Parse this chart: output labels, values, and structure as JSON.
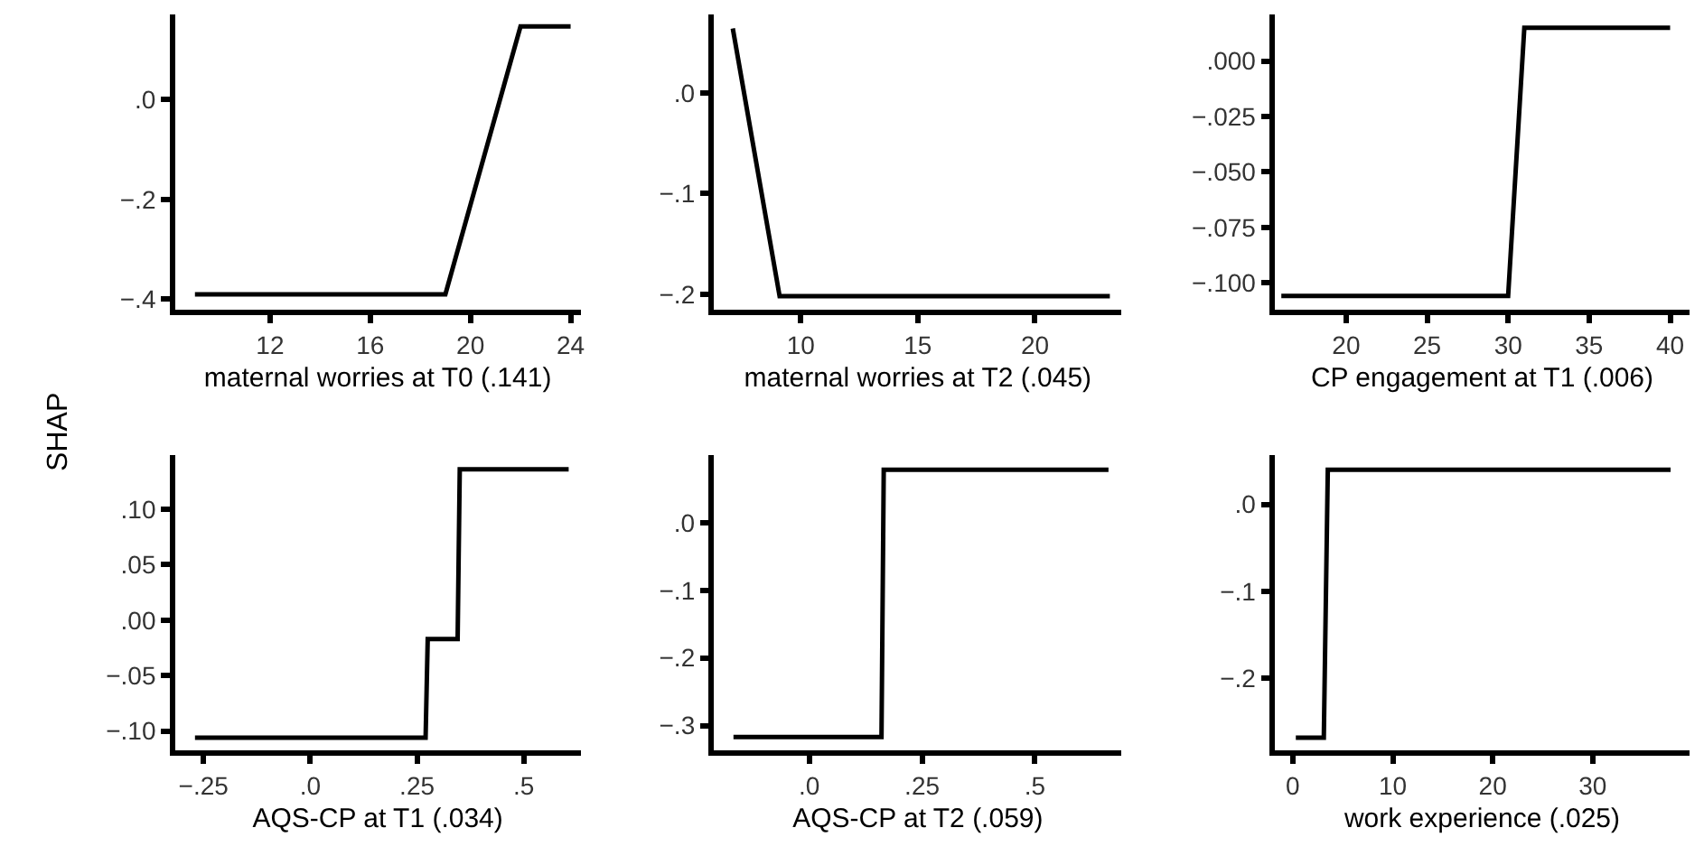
{
  "chart_data": [
    {
      "type": "line",
      "ylabel": "SHAP",
      "xlabel": "maternal worries at T0 (.141)",
      "color": "#000000",
      "x": [
        9.0,
        19.0,
        22.0,
        24.0
      ],
      "values": [
        -0.39,
        -0.39,
        0.146,
        0.146
      ],
      "xlim": [
        8.2,
        24.4
      ],
      "ylim": [
        -0.42,
        0.17
      ],
      "xticks": [
        12,
        16,
        20,
        24
      ],
      "yticks": [
        {
          "value": 0,
          "label": ".0"
        },
        {
          "value": -0.2,
          "label": "−.2"
        },
        {
          "value": -0.4,
          "label": "−.4"
        }
      ]
    },
    {
      "type": "line",
      "xlabel": "maternal worries at T2 (.045)",
      "color": "#000000",
      "x": [
        7.1,
        9.1,
        23.2
      ],
      "values": [
        0.064,
        -0.202,
        -0.202
      ],
      "xlim": [
        6.3,
        23.7
      ],
      "ylim": [
        -0.215,
        0.078
      ],
      "xticks": [
        10,
        15,
        20
      ],
      "yticks": [
        {
          "value": 0,
          "label": ".0"
        },
        {
          "value": -0.1,
          "label": "−.1"
        },
        {
          "value": -0.2,
          "label": "−.2"
        }
      ]
    },
    {
      "type": "line",
      "xlabel": "CP engagement at T1 (.006)",
      "color": "#000000",
      "x": [
        16.0,
        30.0,
        31.0,
        40.0
      ],
      "values": [
        -0.106,
        -0.106,
        0.015,
        0.015
      ],
      "xlim": [
        15.6,
        41.2
      ],
      "ylim": [
        -0.112,
        0.021
      ],
      "xticks": [
        20,
        25,
        30,
        35,
        40
      ],
      "yticks": [
        {
          "value": 0,
          "label": ".000"
        },
        {
          "value": -0.025,
          "label": "−.025"
        },
        {
          "value": -0.05,
          "label": "−.050"
        },
        {
          "value": -0.075,
          "label": "−.075"
        },
        {
          "value": -0.1,
          "label": "−.100"
        }
      ]
    },
    {
      "type": "line",
      "xlabel": "AQS-CP at T1 (.034)",
      "color": "#000000",
      "x": [
        -0.27,
        0.27,
        0.275,
        0.345,
        0.35,
        0.605
      ],
      "values": [
        -0.106,
        -0.106,
        -0.017,
        -0.017,
        0.136,
        0.136
      ],
      "xlim": [
        -0.317,
        0.633
      ],
      "ylim": [
        -0.117,
        0.149
      ],
      "xticks": [
        {
          "value": -0.25,
          "label": "−.25"
        },
        {
          "value": 0,
          "label": ".0"
        },
        {
          "value": 0.25,
          "label": ".25"
        },
        {
          "value": 0.5,
          "label": ".5"
        }
      ],
      "yticks": [
        {
          "value": 0.1,
          "label": ".10"
        },
        {
          "value": 0.05,
          "label": ".05"
        },
        {
          "value": 0,
          "label": ".00"
        },
        {
          "value": -0.05,
          "label": "−.05"
        },
        {
          "value": -0.1,
          "label": "−.10"
        }
      ]
    },
    {
      "type": "line",
      "xlabel": "AQS-CP at T2 (.059)",
      "color": "#000000",
      "x": [
        -0.168,
        0.16,
        0.165,
        0.663
      ],
      "values": [
        -0.317,
        -0.317,
        0.078,
        0.078
      ],
      "xlim": [
        -0.211,
        0.692
      ],
      "ylim": [
        -0.336,
        0.1
      ],
      "xticks": [
        {
          "value": 0,
          "label": ".0"
        },
        {
          "value": 0.25,
          "label": ".25"
        },
        {
          "value": 0.5,
          "label": ".5"
        }
      ],
      "yticks": [
        {
          "value": 0,
          "label": ".0"
        },
        {
          "value": -0.1,
          "label": "−.1"
        },
        {
          "value": -0.2,
          "label": "−.2"
        },
        {
          "value": -0.3,
          "label": "−.3"
        }
      ]
    },
    {
      "type": "line",
      "xlabel": "work experience (.025)",
      "color": "#000000",
      "x": [
        0.3,
        3.1,
        3.5,
        37.8
      ],
      "values": [
        -0.269,
        -0.269,
        0.04,
        0.04
      ],
      "xlim": [
        -1.8,
        39.7
      ],
      "ylim": [
        -0.283,
        0.057
      ],
      "xticks": [
        0,
        10,
        20,
        30
      ],
      "yticks": [
        {
          "value": 0,
          "label": ".0"
        },
        {
          "value": -0.1,
          "label": "−.1"
        },
        {
          "value": -0.2,
          "label": "−.2"
        }
      ]
    }
  ]
}
